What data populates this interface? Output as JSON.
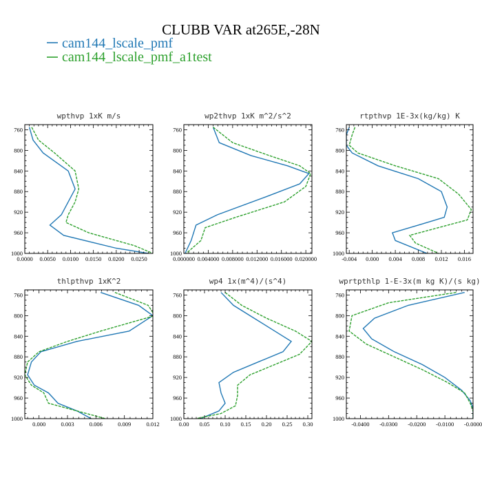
{
  "figure": {
    "title": "CLUBB VAR at265E,-28N",
    "legend": [
      {
        "label": "cam144_lscale_pmf",
        "color": "#1f77b4"
      },
      {
        "label": "cam144_lscale_pmf_a1test",
        "color": "#2ca02c"
      }
    ]
  },
  "chart_data": [
    {
      "type": "line",
      "title": "wpthvp  1xK m/s",
      "ylim": [
        1000,
        750
      ],
      "xlim": [
        0,
        0.028
      ],
      "yticks": [
        760,
        800,
        840,
        880,
        920,
        960,
        1000
      ],
      "xticks": [
        0,
        0.005,
        0.01,
        0.015,
        0.02,
        0.025
      ],
      "xtick_labels": [
        "0.0000",
        "0.0050",
        "0.0100",
        "0.0150",
        "0.0200",
        "0.0250"
      ],
      "series": [
        {
          "name": "cam144_lscale_pmf",
          "color": "#1f77b4",
          "style": "solid",
          "y": [
            755,
            780,
            805,
            840,
            875,
            900,
            925,
            945,
            965,
            990,
            1000
          ],
          "x": [
            0.001,
            0.0018,
            0.004,
            0.0095,
            0.011,
            0.0095,
            0.008,
            0.0055,
            0.0085,
            0.02,
            0.027
          ]
        },
        {
          "name": "cam144_lscale_pmf_a1test",
          "color": "#2ca02c",
          "style": "dashed",
          "y": [
            755,
            780,
            805,
            840,
            875,
            900,
            925,
            940,
            960,
            985,
            1000
          ],
          "x": [
            0.0015,
            0.003,
            0.0065,
            0.011,
            0.0118,
            0.011,
            0.0095,
            0.009,
            0.014,
            0.024,
            0.028
          ]
        }
      ]
    },
    {
      "type": "line",
      "title": "wp2thvp  1xK m^2/s^2",
      "ylim": [
        1000,
        750
      ],
      "xlim": [
        0,
        0.021
      ],
      "yticks": [
        760,
        800,
        840,
        880,
        920,
        960,
        1000
      ],
      "xticks": [
        0,
        0.004,
        0.008,
        0.012,
        0.016,
        0.02
      ],
      "xtick_labels": [
        "0.000000",
        "0.004000",
        "0.008000",
        "0.012000",
        "0.016000",
        "0.020000"
      ],
      "series": [
        {
          "name": "cam144_lscale_pmf",
          "color": "#1f77b4",
          "style": "solid",
          "y": [
            755,
            785,
            810,
            830,
            845,
            865,
            890,
            925,
            945,
            975,
            1000
          ],
          "x": [
            0.0048,
            0.0058,
            0.011,
            0.017,
            0.0205,
            0.019,
            0.0135,
            0.0055,
            0.002,
            0.0012,
            0.0002
          ]
        },
        {
          "name": "cam144_lscale_pmf_a1test",
          "color": "#2ca02c",
          "style": "dashed",
          "y": [
            755,
            785,
            810,
            830,
            845,
            870,
            900,
            930,
            950,
            975,
            1000
          ],
          "x": [
            0.0048,
            0.008,
            0.014,
            0.019,
            0.0208,
            0.02,
            0.0165,
            0.0085,
            0.0035,
            0.0028,
            0.0004
          ]
        }
      ]
    },
    {
      "type": "line",
      "title": "rtpthvp  1E-3x(kg/kg) K",
      "ylim": [
        1000,
        750
      ],
      "xlim": [
        -0.0045,
        0.0175
      ],
      "yticks": [
        760,
        800,
        840,
        880,
        920,
        960,
        1000
      ],
      "xticks": [
        -0.004,
        0,
        0.004,
        0.008,
        0.012,
        0.016
      ],
      "xtick_labels": [
        "-0.004",
        "0.000",
        "0.004",
        "0.008",
        "0.012",
        "0.016"
      ],
      "series": [
        {
          "name": "cam144_lscale_pmf",
          "color": "#1f77b4",
          "style": "solid",
          "y": [
            755,
            770,
            790,
            805,
            830,
            855,
            880,
            910,
            930,
            945,
            960,
            975,
            1000
          ],
          "x": [
            -0.004,
            -0.0045,
            -0.0045,
            -0.0035,
            0.001,
            0.008,
            0.012,
            0.013,
            0.0125,
            0.008,
            0.0035,
            0.004,
            0.0095
          ]
        },
        {
          "name": "cam144_lscale_pmf_a1test",
          "color": "#2ca02c",
          "style": "dashed",
          "y": [
            755,
            770,
            790,
            805,
            830,
            855,
            885,
            915,
            935,
            950,
            965,
            980,
            1000
          ],
          "x": [
            -0.003,
            -0.0035,
            -0.004,
            -0.0025,
            0.004,
            0.0115,
            0.015,
            0.0172,
            0.0165,
            0.0115,
            0.0065,
            0.0075,
            0.0115
          ]
        }
      ]
    },
    {
      "type": "line",
      "title": "thlpthvp  1xK^2",
      "ylim": [
        1000,
        750
      ],
      "xlim": [
        -0.0015,
        0.012
      ],
      "yticks": [
        760,
        800,
        840,
        880,
        920,
        960,
        1000
      ],
      "xticks": [
        0,
        0.003,
        0.006,
        0.009,
        0.012
      ],
      "xtick_labels": [
        "0.000",
        "0.003",
        "0.006",
        "0.009",
        "0.012"
      ],
      "series": [
        {
          "name": "cam144_lscale_pmf",
          "color": "#1f77b4",
          "style": "solid",
          "y": [
            755,
            780,
            800,
            830,
            850,
            870,
            890,
            915,
            935,
            950,
            970,
            985,
            1000
          ],
          "x": [
            0.0065,
            0.0105,
            0.012,
            0.0095,
            0.004,
            0.0002,
            -0.0008,
            -0.0012,
            -0.0005,
            0.001,
            0.002,
            0.004,
            0.0055
          ]
        },
        {
          "name": "cam144_lscale_pmf_a1test",
          "color": "#2ca02c",
          "style": "dashed",
          "y": [
            755,
            780,
            800,
            830,
            850,
            870,
            890,
            915,
            935,
            950,
            970,
            985,
            1000
          ],
          "x": [
            0.008,
            0.0115,
            0.0122,
            0.0065,
            0.003,
            0.0,
            -0.0012,
            -0.0015,
            -0.0008,
            0.0005,
            0.001,
            0.004,
            0.007
          ]
        }
      ]
    },
    {
      "type": "line",
      "title": "wp4  1x(m^4)/(s^4)",
      "ylim": [
        1000,
        750
      ],
      "xlim": [
        0,
        0.31
      ],
      "yticks": [
        760,
        800,
        840,
        880,
        920,
        960,
        1000
      ],
      "xticks": [
        0,
        0.05,
        0.1,
        0.15,
        0.2,
        0.25,
        0.3
      ],
      "xtick_labels": [
        "0.00",
        "0.05",
        "0.10",
        "0.15",
        "0.20",
        "0.25",
        "0.30"
      ],
      "series": [
        {
          "name": "cam144_lscale_pmf",
          "color": "#1f77b4",
          "style": "solid",
          "y": [
            755,
            780,
            805,
            830,
            850,
            870,
            890,
            910,
            930,
            950,
            970,
            985,
            1000
          ],
          "x": [
            0.09,
            0.12,
            0.17,
            0.22,
            0.26,
            0.24,
            0.18,
            0.12,
            0.085,
            0.09,
            0.1,
            0.085,
            0.04
          ]
        },
        {
          "name": "cam144_lscale_pmf_a1test",
          "color": "#2ca02c",
          "style": "dashed",
          "y": [
            755,
            780,
            805,
            830,
            850,
            875,
            895,
            915,
            935,
            955,
            975,
            990,
            1000
          ],
          "x": [
            0.1,
            0.14,
            0.2,
            0.27,
            0.31,
            0.28,
            0.22,
            0.16,
            0.13,
            0.13,
            0.125,
            0.09,
            0.03
          ]
        }
      ]
    },
    {
      "type": "line",
      "title": "wprtpthlp  1-E-3x(m kg K)/(s kg)",
      "ylim": [
        1000,
        750
      ],
      "xlim": [
        -0.045,
        0
      ],
      "yticks": [
        760,
        800,
        840,
        880,
        920,
        960,
        1000
      ],
      "xticks": [
        -0.04,
        -0.03,
        -0.02,
        -0.01,
        0
      ],
      "xtick_labels": [
        "-0.0400",
        "-0.0300",
        "-0.0200",
        "-0.0100",
        "-0.0000"
      ],
      "series": [
        {
          "name": "cam144_lscale_pmf",
          "color": "#1f77b4",
          "style": "solid",
          "y": [
            755,
            780,
            805,
            825,
            845,
            870,
            895,
            920,
            945,
            965,
            980,
            1000
          ],
          "x": [
            -0.003,
            -0.023,
            -0.035,
            -0.039,
            -0.036,
            -0.028,
            -0.018,
            -0.01,
            -0.004,
            -0.001,
            0,
            0
          ]
        },
        {
          "name": "cam144_lscale_pmf_a1test",
          "color": "#2ca02c",
          "style": "dashed",
          "y": [
            755,
            775,
            800,
            830,
            855,
            880,
            905,
            930,
            950,
            970,
            985,
            1000
          ],
          "x": [
            -0.006,
            -0.03,
            -0.043,
            -0.044,
            -0.038,
            -0.028,
            -0.018,
            -0.009,
            -0.003,
            -0.001,
            0,
            0
          ]
        }
      ]
    }
  ]
}
